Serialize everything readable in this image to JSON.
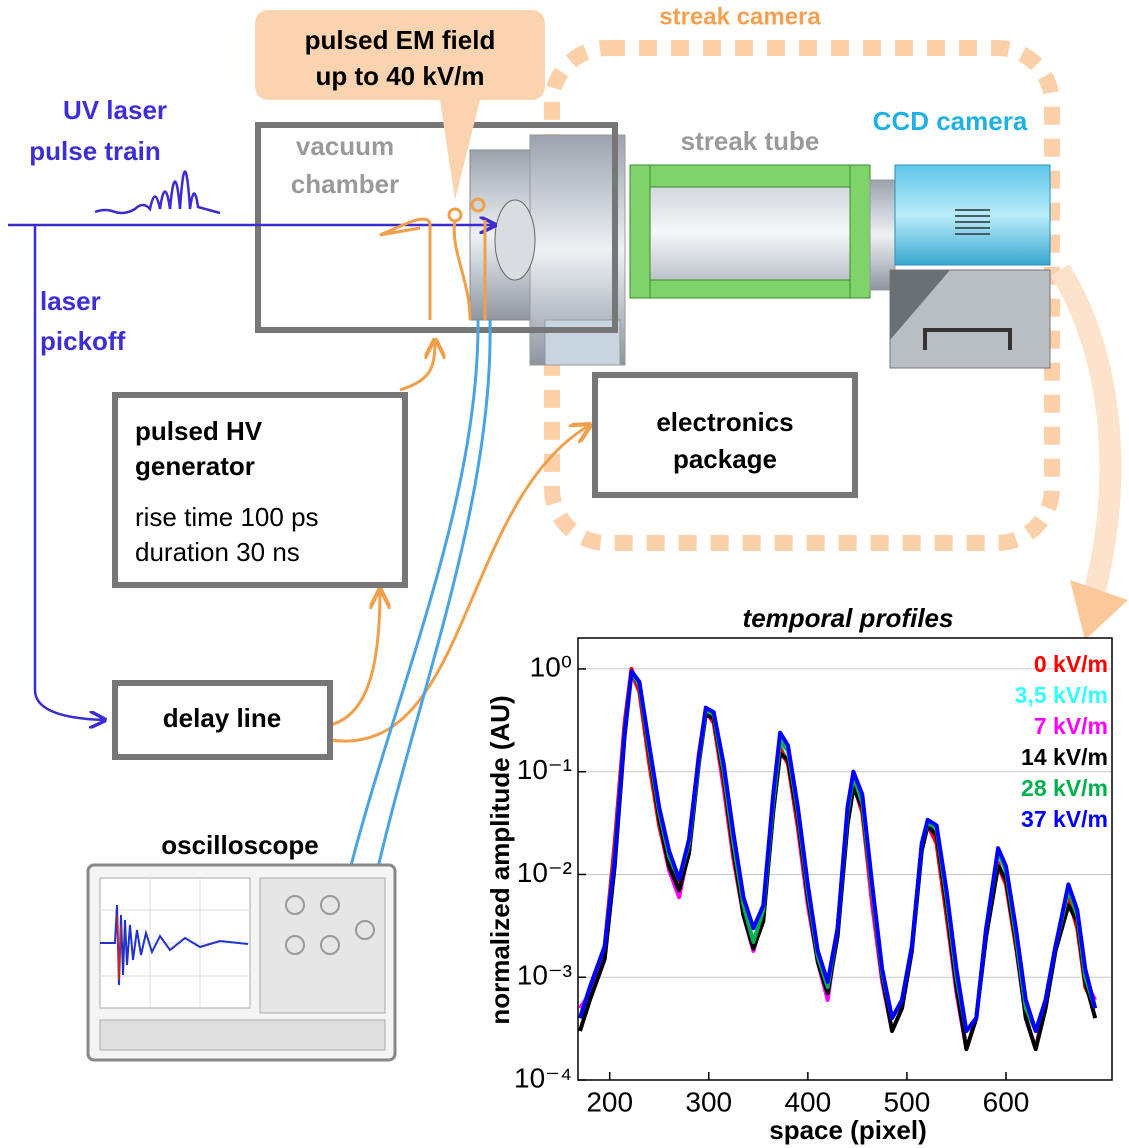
{
  "labels": {
    "callout": [
      "pulsed EM field",
      "up to 40 kV/m"
    ],
    "streak_camera": "streak camera",
    "uv_laser": [
      "UV laser",
      "pulse train"
    ],
    "vacuum_chamber": [
      "vacuum",
      "chamber"
    ],
    "streak_tube": "streak tube",
    "ccd_camera": "CCD camera",
    "laser_pickoff": [
      "laser",
      "pickoff"
    ],
    "hv_generator": [
      "pulsed HV",
      "generator"
    ],
    "hv_specs": [
      "rise time 100 ps",
      "duration 30 ns"
    ],
    "electronics": [
      "electronics",
      "package"
    ],
    "delay_line": "delay line",
    "oscilloscope": "oscilloscope"
  },
  "chart_data": {
    "type": "line",
    "title": "temporal profiles",
    "x_label": "space (pixel)",
    "y_label": "normalized amplitude (AU)",
    "y_scale": "log",
    "grid": true,
    "legend": "upper right",
    "xlim": [
      168,
      707
    ],
    "ylim": [
      0.0001,
      2
    ],
    "xticks": [
      200,
      300,
      400,
      500,
      600
    ],
    "yticks": [
      {
        "value": 1,
        "label": "10⁰"
      },
      {
        "value": 0.1,
        "label": "10⁻¹"
      },
      {
        "value": 0.01,
        "label": "10⁻²"
      },
      {
        "value": 0.001,
        "label": "10⁻³"
      },
      {
        "value": 0.0001,
        "label": "10⁻⁴"
      }
    ],
    "x": [
      170,
      180,
      195,
      205,
      215,
      222,
      230,
      240,
      250,
      260,
      270,
      280,
      290,
      297,
      305,
      315,
      325,
      335,
      345,
      355,
      365,
      372,
      380,
      390,
      400,
      410,
      420,
      430,
      440,
      446,
      455,
      465,
      475,
      485,
      495,
      505,
      515,
      521,
      530,
      540,
      550,
      560,
      570,
      580,
      592,
      600,
      610,
      620,
      630,
      640,
      650,
      663,
      672,
      680,
      690
    ],
    "series": [
      {
        "name": "3,5 kV/m",
        "color": "#33ffff",
        "values": [
          0.0004,
          0.0008,
          0.002,
          0.02,
          0.3,
          0.95,
          0.62,
          0.13,
          0.032,
          0.013,
          0.008,
          0.02,
          0.15,
          0.4,
          0.3,
          0.08,
          0.016,
          0.004,
          0.002,
          0.004,
          0.05,
          0.18,
          0.12,
          0.03,
          0.006,
          0.0015,
          0.0009,
          0.003,
          0.04,
          0.085,
          0.045,
          0.006,
          0.001,
          0.0004,
          0.0006,
          0.002,
          0.02,
          0.033,
          0.022,
          0.004,
          0.0008,
          0.0003,
          0.0004,
          0.003,
          0.015,
          0.009,
          0.002,
          0.0005,
          0.0003,
          0.0006,
          0.002,
          0.007,
          0.003,
          0.0008,
          0.0005
        ]
      },
      {
        "name": "7 kV/m",
        "color": "#ff00ff",
        "values": [
          0.0005,
          0.0007,
          0.002,
          0.018,
          0.28,
          0.9,
          0.6,
          0.12,
          0.03,
          0.011,
          0.006,
          0.018,
          0.14,
          0.38,
          0.3,
          0.07,
          0.014,
          0.004,
          0.0018,
          0.004,
          0.045,
          0.16,
          0.12,
          0.028,
          0.005,
          0.0014,
          0.0006,
          0.003,
          0.035,
          0.075,
          0.04,
          0.005,
          0.0009,
          0.0003,
          0.0005,
          0.002,
          0.018,
          0.03,
          0.02,
          0.004,
          0.0007,
          0.0002,
          0.0004,
          0.003,
          0.012,
          0.008,
          0.002,
          0.0004,
          0.0002,
          0.0006,
          0.002,
          0.006,
          0.003,
          0.0009,
          0.0006
        ]
      },
      {
        "name": "0 kV/m",
        "color": "#ff0000",
        "values": [
          0.0004,
          0.0008,
          0.002,
          0.02,
          0.3,
          1.0,
          0.6,
          0.12,
          0.03,
          0.012,
          0.008,
          0.02,
          0.15,
          0.4,
          0.3,
          0.08,
          0.015,
          0.004,
          0.002,
          0.004,
          0.05,
          0.17,
          0.12,
          0.03,
          0.006,
          0.0015,
          0.0008,
          0.003,
          0.04,
          0.08,
          0.04,
          0.006,
          0.001,
          0.0004,
          0.0006,
          0.002,
          0.02,
          0.033,
          0.02,
          0.004,
          0.0008,
          0.0003,
          0.0004,
          0.003,
          0.013,
          0.008,
          0.002,
          0.0005,
          0.0003,
          0.0006,
          0.002,
          0.006,
          0.003,
          0.0008,
          0.0005
        ]
      },
      {
        "name": "14 kV/m",
        "color": "#000000",
        "values": [
          0.0003,
          0.0006,
          0.0015,
          0.012,
          0.22,
          0.92,
          0.7,
          0.15,
          0.035,
          0.012,
          0.007,
          0.016,
          0.12,
          0.36,
          0.33,
          0.09,
          0.017,
          0.004,
          0.0019,
          0.0035,
          0.04,
          0.15,
          0.13,
          0.035,
          0.006,
          0.0014,
          0.0007,
          0.0025,
          0.03,
          0.07,
          0.045,
          0.007,
          0.001,
          0.0003,
          0.0005,
          0.0018,
          0.017,
          0.03,
          0.024,
          0.005,
          0.0008,
          0.0002,
          0.0004,
          0.0025,
          0.012,
          0.009,
          0.0022,
          0.0004,
          0.0002,
          0.0005,
          0.0018,
          0.005,
          0.0035,
          0.0009,
          0.0004
        ]
      },
      {
        "name": "28 kV/m",
        "color": "#00b050",
        "values": [
          0.0004,
          0.0008,
          0.002,
          0.015,
          0.25,
          0.93,
          0.7,
          0.16,
          0.04,
          0.015,
          0.009,
          0.02,
          0.13,
          0.4,
          0.36,
          0.1,
          0.02,
          0.005,
          0.0022,
          0.0045,
          0.05,
          0.2,
          0.16,
          0.04,
          0.007,
          0.0016,
          0.0008,
          0.003,
          0.04,
          0.09,
          0.05,
          0.007,
          0.0011,
          0.0004,
          0.0006,
          0.002,
          0.02,
          0.032,
          0.028,
          0.006,
          0.001,
          0.0003,
          0.0004,
          0.003,
          0.017,
          0.011,
          0.0025,
          0.0005,
          0.0003,
          0.0006,
          0.002,
          0.007,
          0.004,
          0.001,
          0.0005
        ]
      },
      {
        "name": "37 kV/m",
        "color": "#0000ff",
        "values": [
          0.0004,
          0.0008,
          0.002,
          0.014,
          0.24,
          0.95,
          0.75,
          0.18,
          0.045,
          0.017,
          0.009,
          0.022,
          0.14,
          0.42,
          0.38,
          0.12,
          0.025,
          0.006,
          0.003,
          0.005,
          0.06,
          0.24,
          0.18,
          0.045,
          0.008,
          0.0018,
          0.0009,
          0.003,
          0.045,
          0.1,
          0.06,
          0.008,
          0.0012,
          0.0004,
          0.0006,
          0.002,
          0.02,
          0.034,
          0.03,
          0.007,
          0.0012,
          0.0003,
          0.0004,
          0.003,
          0.018,
          0.012,
          0.003,
          0.0006,
          0.0003,
          0.0006,
          0.002,
          0.008,
          0.0045,
          0.0012,
          0.0005
        ]
      }
    ]
  }
}
